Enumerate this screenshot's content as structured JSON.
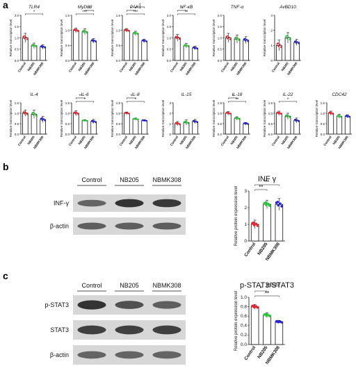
{
  "panels": {
    "a": "a",
    "b": "b",
    "c": "c"
  },
  "colors": {
    "control": "#e8232b",
    "nb205": "#2ec83c",
    "nbmk308": "#2323d2",
    "text": "#111111",
    "blot_bg": "#d7d7d7",
    "blot_band": "#222222"
  },
  "chart_data": [
    {
      "type": "bar",
      "panel": "a",
      "title": "TLR4",
      "ylabel": "Relative transcription level",
      "categories": [
        "Control",
        "NB205",
        "NBMK308"
      ],
      "values": [
        1.0,
        0.65,
        0.6
      ],
      "errors": [
        0.2,
        0.12,
        0.1
      ],
      "ylim": [
        0,
        2
      ],
      "yticks": [
        0,
        0.5,
        1.0,
        1.5,
        2.0
      ],
      "significance": [
        {
          "from": 0,
          "to": 2,
          "label": "*"
        }
      ]
    },
    {
      "type": "bar",
      "panel": "a",
      "title": "MyD88",
      "ylabel": "Relative transcription level",
      "categories": [
        "Control",
        "NB205",
        "NBMK308"
      ],
      "values": [
        1.0,
        0.95,
        0.65
      ],
      "errors": [
        0.08,
        0.1,
        0.08
      ],
      "ylim": [
        0,
        1.5
      ],
      "yticks": [
        0,
        0.5,
        1.0,
        1.5
      ],
      "significance": [
        {
          "from": 0,
          "to": 2,
          "label": "***"
        },
        {
          "from": 1,
          "to": 2,
          "label": "*"
        }
      ]
    },
    {
      "type": "bar",
      "panel": "a",
      "title": "PAK1",
      "ylabel": "Relative transcription level",
      "categories": [
        "Control",
        "NB205",
        "NBMK308"
      ],
      "values": [
        1.0,
        0.9,
        0.65
      ],
      "errors": [
        0.06,
        0.07,
        0.06
      ],
      "ylim": [
        0,
        1.5
      ],
      "yticks": [
        0,
        0.5,
        1.0,
        1.5
      ],
      "significance": [
        {
          "from": 0,
          "to": 2,
          "label": "***"
        },
        {
          "from": 0,
          "to": 1,
          "label": "*"
        },
        {
          "from": 1,
          "to": 2,
          "label": "*"
        }
      ]
    },
    {
      "type": "bar",
      "panel": "a",
      "title": "NF-κB",
      "ylabel": "Relative transcription level",
      "categories": [
        "Control",
        "NB205",
        "NBMK308"
      ],
      "values": [
        1.0,
        0.65,
        0.55
      ],
      "errors": [
        0.15,
        0.1,
        0.08
      ],
      "ylim": [
        0,
        2
      ],
      "yticks": [
        0,
        0.5,
        1.0,
        1.5,
        2.0
      ],
      "significance": [
        {
          "from": 0,
          "to": 2,
          "label": "**"
        },
        {
          "from": 0,
          "to": 1,
          "label": "*"
        }
      ]
    },
    {
      "type": "bar",
      "panel": "a",
      "title": "TNF-α",
      "ylabel": "Relative transcription level",
      "categories": [
        "Control",
        "NB205",
        "NBMK308"
      ],
      "values": [
        1.0,
        0.95,
        0.9
      ],
      "errors": [
        0.2,
        0.18,
        0.15
      ],
      "ylim": [
        0,
        2
      ],
      "yticks": [
        0,
        0.5,
        1.0,
        1.5,
        2.0
      ],
      "significance": []
    },
    {
      "type": "bar",
      "panel": "a",
      "title": "AvBD10",
      "ylabel": "Relative transcription level",
      "categories": [
        "Control",
        "NB205",
        "NBMK308"
      ],
      "values": [
        1.0,
        1.5,
        1.2
      ],
      "errors": [
        0.35,
        0.35,
        0.2
      ],
      "ylim": [
        0,
        3
      ],
      "yticks": [
        0,
        1,
        2,
        3
      ],
      "significance": []
    },
    {
      "type": "bar",
      "panel": "a",
      "title": "CDC42",
      "ylabel": "Relative transcription level",
      "categories": [
        "Control",
        "NB205",
        "NBMK308"
      ],
      "values": [
        1.0,
        0.85,
        0.85
      ],
      "errors": [
        0.1,
        0.1,
        0.08
      ],
      "ylim": [
        0,
        1.5
      ],
      "yticks": [
        0,
        0.5,
        1.0,
        1.5
      ],
      "significance": []
    },
    {
      "type": "bar",
      "panel": "a",
      "title": "IL-4",
      "ylabel": "Relative transcription level",
      "categories": [
        "Control",
        "NB205",
        "NBMK308"
      ],
      "values": [
        1.0,
        0.95,
        0.7
      ],
      "errors": [
        0.15,
        0.2,
        0.15
      ],
      "ylim": [
        0,
        1.5
      ],
      "yticks": [
        0,
        0.5,
        1.0,
        1.5
      ],
      "significance": []
    },
    {
      "type": "bar",
      "panel": "a",
      "title": "IL-6",
      "ylabel": "Relative transcription level",
      "categories": [
        "Control",
        "NB205",
        "NBMK308"
      ],
      "values": [
        1.0,
        0.65,
        0.6
      ],
      "errors": [
        0.12,
        0.04,
        0.1
      ],
      "ylim": [
        0,
        1.5
      ],
      "yticks": [
        0,
        0.5,
        1.0,
        1.5
      ],
      "significance": [
        {
          "from": 0,
          "to": 2,
          "label": "*"
        },
        {
          "from": 0,
          "to": 1,
          "label": "**"
        }
      ]
    },
    {
      "type": "bar",
      "panel": "a",
      "title": "IL-8",
      "ylabel": "Relative transcription level",
      "categories": [
        "Control",
        "NB205",
        "NBMK308"
      ],
      "values": [
        1.0,
        0.72,
        0.65
      ],
      "errors": [
        0.06,
        0.05,
        0.04
      ],
      "ylim": [
        0,
        1.5
      ],
      "yticks": [
        0,
        0.5,
        1.0,
        1.5
      ],
      "significance": [
        {
          "from": 0,
          "to": 2,
          "label": "*"
        },
        {
          "from": 0,
          "to": 1,
          "label": "*"
        }
      ]
    },
    {
      "type": "bar",
      "panel": "a",
      "title": "IL-15",
      "ylabel": "Relative transcription level",
      "categories": [
        "Control",
        "NB205",
        "NBMK308"
      ],
      "values": [
        1.0,
        1.1,
        1.2
      ],
      "errors": [
        0.2,
        0.25,
        0.2
      ],
      "ylim": [
        0,
        3
      ],
      "yticks": [
        0,
        1,
        2,
        3
      ],
      "significance": []
    },
    {
      "type": "bar",
      "panel": "a",
      "title": "IL-18",
      "ylabel": "Relative transcription level",
      "categories": [
        "Control",
        "NB205",
        "NBMK308"
      ],
      "values": [
        1.0,
        0.75,
        0.5
      ],
      "errors": [
        0.08,
        0.08,
        0.06
      ],
      "ylim": [
        0,
        1.5
      ],
      "yticks": [
        0,
        0.5,
        1.0,
        1.5
      ],
      "significance": [
        {
          "from": 0,
          "to": 2,
          "label": "**"
        },
        {
          "from": 0,
          "to": 1,
          "label": "*"
        }
      ]
    },
    {
      "type": "bar",
      "panel": "a",
      "title": "IL-22",
      "ylabel": "Relative transcription level",
      "categories": [
        "Control",
        "NB205",
        "NBMK308"
      ],
      "values": [
        1.0,
        0.85,
        0.65
      ],
      "errors": [
        0.1,
        0.15,
        0.12
      ],
      "ylim": [
        0,
        1.5
      ],
      "yticks": [
        0,
        0.5,
        1.0,
        1.5
      ],
      "significance": [
        {
          "from": 0,
          "to": 2,
          "label": "*"
        }
      ]
    },
    {
      "type": "bar",
      "panel": "b",
      "title": "INF γ",
      "ylabel": "Relative protein expression level",
      "categories": [
        "Control",
        "NB205",
        "NBMK308"
      ],
      "values": [
        1.0,
        2.2,
        2.2
      ],
      "errors": [
        0.25,
        0.25,
        0.35
      ],
      "ylim": [
        0,
        3
      ],
      "yticks": [
        0,
        1,
        2,
        3
      ],
      "significance": [
        {
          "from": 0,
          "to": 1,
          "label": "**"
        },
        {
          "from": 0,
          "to": 2,
          "label": "**"
        }
      ]
    },
    {
      "type": "bar",
      "panel": "c",
      "title": "p-STAT3/STAT3",
      "ylabel": "Relative protein expression level",
      "categories": [
        "Control",
        "NB205",
        "NBMK308"
      ],
      "values": [
        0.8,
        0.62,
        0.48
      ],
      "errors": [
        0.05,
        0.05,
        0.03
      ],
      "ylim": [
        0,
        1.0
      ],
      "yticks": [
        0.0,
        0.2,
        0.4,
        0.6,
        0.8,
        1.0
      ],
      "significance": [
        {
          "from": 0,
          "to": 2,
          "label": "**"
        },
        {
          "from": 0,
          "to": 1,
          "label": "*"
        },
        {
          "from": 1,
          "to": 2,
          "label": "p=0.063"
        }
      ]
    }
  ],
  "blots": {
    "b": {
      "lanes": [
        "Control",
        "NB205",
        "NBMK308"
      ],
      "rows": [
        {
          "label": "INF-γ",
          "intensity": [
            0.55,
            0.95,
            0.9
          ]
        },
        {
          "label": "β-actin",
          "intensity": [
            0.6,
            0.6,
            0.6
          ]
        }
      ]
    },
    "c": {
      "lanes": [
        "Control",
        "NB205",
        "NBMK308"
      ],
      "rows": [
        {
          "label": "p-STAT3",
          "intensity": [
            0.95,
            0.7,
            0.6
          ]
        },
        {
          "label": "STAT3",
          "intensity": [
            0.85,
            0.85,
            0.85
          ]
        },
        {
          "label": "β-actin",
          "intensity": [
            0.55,
            0.55,
            0.55
          ]
        }
      ]
    }
  }
}
